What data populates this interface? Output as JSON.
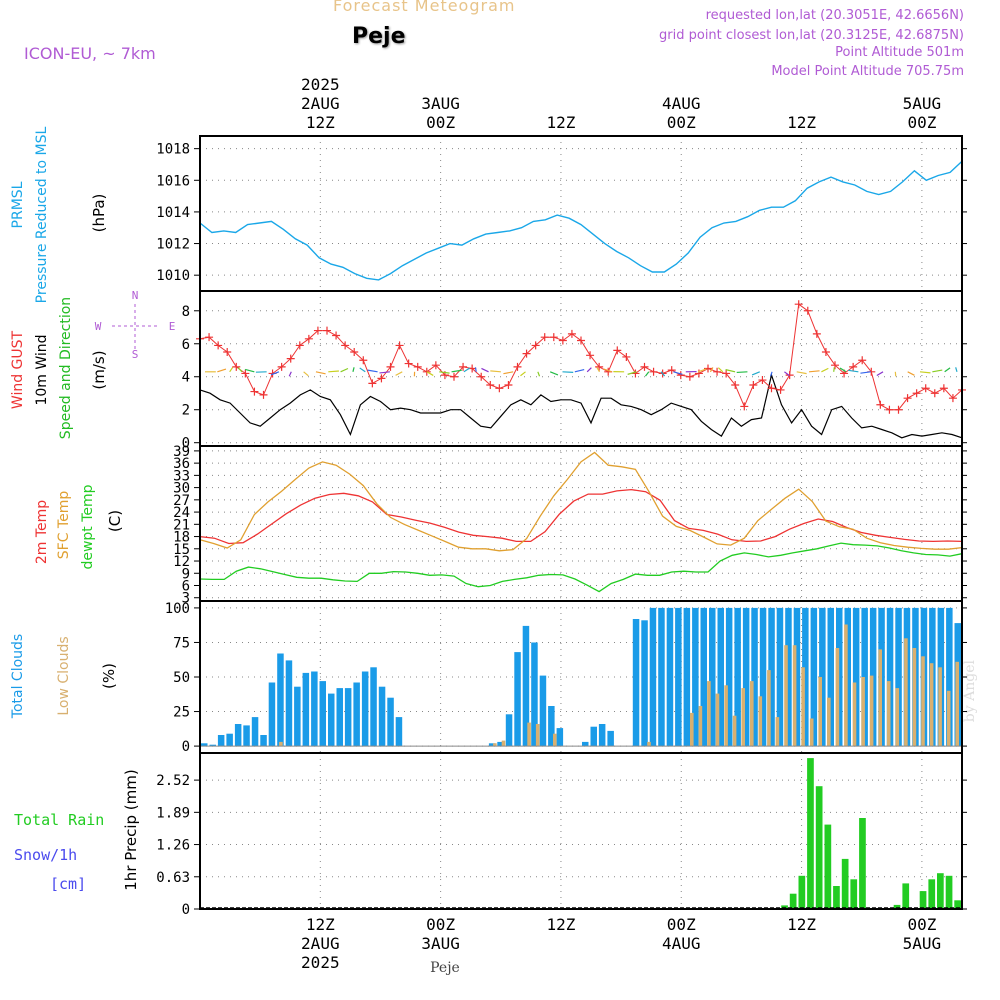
{
  "header": {
    "title": "Forecast Meteogram",
    "location": "Peje",
    "model": "ICON-EU, ~ 7km",
    "requested": "requested lon,lat (20.3051E, 42.6656N)",
    "grid_point": "grid point closest lon,lat (20.3125E, 42.6875N)",
    "point_altitude": "Point Altitude 501m",
    "model_altitude": "Model Point Altitude 705.75m",
    "footer_location": "Peje",
    "watermark": "by Angel"
  },
  "colors": {
    "pressure": "#1aa7e8",
    "gust": "#ee3333",
    "wind": "#000000",
    "direction": "#22bb22",
    "t2m": "#ee3333",
    "sfc": "#e0a030",
    "dew": "#22cc22",
    "total_clouds": "#1a9be8",
    "low_clouds": "#d8b070",
    "rain": "#22cc22",
    "snow": "#4a4aee",
    "purple": "#b05bd4"
  },
  "chart_data": [
    {
      "type": "line",
      "panel": "pressure",
      "ylabel": "(hPa)",
      "side_labels": [
        "PRMSL",
        "Pressure Reduced to MSL"
      ],
      "yticks": [
        1010,
        1012,
        1014,
        1016,
        1018
      ],
      "ylim": [
        1009.0,
        1018.8
      ],
      "x": [
        0,
        1,
        2,
        3,
        4,
        5,
        6,
        7,
        8,
        9,
        10,
        11,
        12,
        13,
        14,
        15,
        16,
        17,
        18,
        19,
        20,
        21,
        22,
        23,
        24,
        25,
        26,
        27,
        28,
        29,
        30,
        31,
        32,
        33,
        34,
        35,
        36,
        37,
        38,
        39,
        40,
        41,
        42,
        43,
        44,
        45,
        46,
        47,
        48,
        49,
        50,
        51,
        52,
        53,
        54,
        55,
        56,
        57,
        58,
        59,
        60,
        61,
        62,
        63,
        64
      ],
      "series": [
        {
          "values": [
            1013.3,
            1012.7,
            1012.8,
            1012.7,
            1013.2,
            1013.3,
            1013.4,
            1012.9,
            1012.3,
            1011.9,
            1011.1,
            1010.7,
            1010.5,
            1010.1,
            1009.8,
            1009.7,
            1010.1,
            1010.6,
            1011.0,
            1011.4,
            1011.7,
            1012.0,
            1011.9,
            1012.3,
            1012.6,
            1012.7,
            1012.8,
            1013.0,
            1013.4,
            1013.5,
            1013.8,
            1013.6,
            1013.2,
            1012.6,
            1012.0,
            1011.5,
            1011.1,
            1010.6,
            1010.2,
            1010.2,
            1010.7,
            1011.4,
            1012.4,
            1013.0,
            1013.3,
            1013.4,
            1013.7,
            1014.1,
            1014.3,
            1014.3,
            1014.7,
            1015.5,
            1015.9,
            1016.2,
            1015.9,
            1015.7,
            1015.3,
            1015.1,
            1015.3,
            1015.9,
            1016.6,
            1016.0,
            1016.3,
            1016.5,
            1017.2
          ]
        }
      ]
    },
    {
      "type": "line",
      "panel": "wind",
      "ylabel": "(m/s)",
      "side_labels": [
        "Wind GUST",
        "10m Wind",
        "Speed and Direction"
      ],
      "compass": [
        "N",
        "E",
        "S",
        "W"
      ],
      "yticks": [
        0,
        2,
        4,
        6,
        8
      ],
      "ylim": [
        -0.2,
        9.2
      ],
      "series": [
        {
          "name": "Wind GUST",
          "values": [
            6.3,
            6.4,
            5.9,
            5.5,
            4.6,
            4.2,
            3.1,
            2.9,
            4.2,
            4.6,
            5.1,
            5.9,
            6.3,
            6.8,
            6.8,
            6.5,
            5.9,
            5.5,
            5.0,
            3.6,
            3.9,
            4.6,
            5.9,
            4.8,
            4.6,
            4.3,
            4.7,
            4.1,
            4.0,
            4.6,
            4.5,
            4.0,
            3.5,
            3.3,
            3.5,
            4.6,
            5.4,
            5.9,
            6.4,
            6.4,
            6.2,
            6.6,
            6.2,
            5.3,
            4.6,
            4.3,
            5.6,
            5.2,
            4.2,
            4.6,
            4.3,
            4.2,
            4.4,
            4.1,
            4.0,
            4.2,
            4.5,
            4.3,
            4.2,
            3.5,
            2.2,
            3.5,
            3.8,
            3.3,
            3.2,
            4.1,
            8.4,
            8.0,
            6.6,
            5.5,
            4.7,
            4.2,
            4.6,
            5.0,
            4.3,
            2.3,
            2.0,
            2.0,
            2.7,
            3.0,
            3.3,
            3.0,
            3.3,
            2.7,
            3.2
          ]
        },
        {
          "name": "10m Wind",
          "values": [
            3.2,
            3.0,
            2.6,
            2.4,
            1.8,
            1.2,
            1.0,
            1.5,
            2.0,
            2.4,
            2.9,
            3.2,
            2.8,
            2.6,
            1.7,
            0.5,
            2.3,
            2.8,
            2.5,
            2.0,
            2.1,
            2.0,
            1.8,
            1.8,
            1.8,
            2.0,
            2.0,
            1.5,
            1.0,
            0.9,
            1.6,
            2.3,
            2.6,
            2.3,
            2.9,
            2.5,
            2.6,
            2.6,
            2.4,
            1.2,
            2.7,
            2.7,
            2.3,
            2.2,
            2.0,
            1.7,
            2.0,
            2.4,
            2.2,
            2.0,
            1.3,
            0.8,
            0.4,
            1.5,
            1.0,
            1.4,
            1.5,
            4.1,
            2.3,
            1.2,
            2.0,
            1.0,
            0.5,
            2.0,
            2.2,
            1.5,
            0.9,
            1.0,
            0.8,
            0.6,
            0.3,
            0.5,
            0.4,
            0.5,
            0.6,
            0.5,
            0.3
          ]
        }
      ]
    },
    {
      "type": "line",
      "panel": "temperature",
      "ylabel": "(C)",
      "side_labels": [
        "2m Temp",
        "SFC Temp",
        "dewpt Temp"
      ],
      "yticks": [
        3,
        6,
        9,
        12,
        15,
        18,
        21,
        24,
        27,
        30,
        33,
        36,
        39
      ],
      "ylim": [
        2.2,
        40.2
      ],
      "series": [
        {
          "name": "2m Temp",
          "values": [
            18.0,
            17.6,
            16.3,
            16.5,
            18.6,
            21.1,
            23.6,
            25.7,
            27.4,
            28.3,
            28.6,
            28.0,
            26.5,
            23.4,
            22.8,
            22.0,
            21.3,
            20.3,
            19.1,
            18.3,
            18.0,
            17.6,
            16.8,
            16.8,
            19.2,
            23.5,
            26.7,
            28.4,
            28.4,
            29.2,
            29.5,
            29.0,
            26.9,
            21.9,
            20.0,
            19.5,
            18.6,
            17.2,
            16.8,
            16.9,
            18.0,
            19.8,
            21.2,
            22.3,
            21.7,
            20.2,
            19.0,
            18.3,
            17.8,
            17.3,
            16.9,
            16.8,
            16.9,
            16.8
          ]
        },
        {
          "name": "SFC Temp",
          "values": [
            17.2,
            16.3,
            15.2,
            17.2,
            23.4,
            26.5,
            29.1,
            32.0,
            34.8,
            36.3,
            35.5,
            33.3,
            30.5,
            26.0,
            22.7,
            21.0,
            19.6,
            18.2,
            16.8,
            15.4,
            15.0,
            15.0,
            14.5,
            14.8,
            17.5,
            23.0,
            28.0,
            32.0,
            36.3,
            38.6,
            35.5,
            35.1,
            34.5,
            29.0,
            23.0,
            20.5,
            19.5,
            17.9,
            16.2,
            15.9,
            17.6,
            21.9,
            24.7,
            27.4,
            29.6,
            26.6,
            21.8,
            20.4,
            19.8,
            17.6,
            16.5,
            15.8,
            15.4,
            15.1,
            14.9,
            14.9,
            15.3
          ]
        },
        {
          "name": "dewpt Temp",
          "values": [
            7.6,
            7.5,
            7.5,
            9.5,
            10.5,
            10.1,
            9.4,
            8.7,
            8.0,
            7.8,
            7.8,
            7.4,
            7.1,
            7.0,
            9.0,
            9.0,
            9.4,
            9.3,
            9.0,
            8.5,
            8.6,
            8.3,
            6.5,
            5.7,
            6.0,
            7.0,
            7.5,
            7.9,
            8.5,
            8.7,
            8.6,
            7.6,
            6.1,
            4.5,
            6.5,
            7.5,
            8.8,
            8.5,
            8.5,
            9.3,
            9.5,
            9.3,
            9.3,
            12.0,
            13.4,
            14.0,
            13.6,
            13.0,
            13.4,
            14.0,
            14.5,
            15.0,
            15.7,
            16.4,
            16.0,
            15.9,
            15.7,
            15.2,
            14.5,
            14.0,
            13.6,
            13.5,
            13.2,
            13.8
          ]
        }
      ]
    },
    {
      "type": "bar",
      "panel": "clouds",
      "ylabel": "(%)",
      "side_labels": [
        "Total Clouds",
        "Low Clouds"
      ],
      "yticks": [
        0,
        25,
        50,
        75,
        100
      ],
      "ylim": [
        -5,
        105
      ],
      "series": [
        {
          "name": "Total Clouds",
          "values": [
            2,
            1,
            8,
            9,
            16,
            15,
            21,
            8,
            46,
            67,
            62,
            43,
            53,
            54,
            47,
            38,
            42,
            42,
            46,
            54,
            57,
            43,
            35,
            21,
            0,
            0,
            0,
            0,
            0,
            0,
            0,
            0,
            0,
            0,
            2,
            3,
            23,
            68,
            87,
            75,
            51,
            29,
            13,
            0,
            0,
            3,
            14,
            16,
            11,
            0,
            0,
            92,
            91,
            100,
            100,
            100,
            100,
            100,
            100,
            100,
            100,
            100,
            100,
            100,
            100,
            100,
            100,
            100,
            100,
            100,
            100,
            100,
            100,
            100,
            100,
            100,
            100,
            100,
            100,
            100,
            100,
            100,
            100,
            100,
            100,
            100,
            100,
            100,
            100,
            89
          ]
        },
        {
          "name": "Low Clouds",
          "values": [
            0,
            0,
            0,
            0,
            0,
            0,
            0,
            0,
            0,
            3,
            0,
            0,
            0,
            0,
            0,
            0,
            0,
            0,
            0,
            0,
            0,
            0,
            0,
            0,
            0,
            0,
            0,
            0,
            0,
            0,
            0,
            0,
            0,
            0,
            2,
            4,
            0,
            0,
            17,
            16,
            0,
            9,
            0,
            0,
            0,
            0,
            0,
            0,
            0,
            0,
            0,
            0,
            3,
            0,
            0,
            0,
            0,
            24,
            29,
            47,
            38,
            44,
            22,
            42,
            47,
            36,
            55,
            21,
            73,
            73,
            57,
            20,
            50,
            35,
            71,
            88,
            46,
            50,
            51,
            70,
            47,
            42,
            78,
            71,
            65,
            60,
            57,
            40,
            61
          ]
        }
      ]
    },
    {
      "type": "bar",
      "panel": "precip",
      "ylabel": "1hr Precip (mm)",
      "side_labels": [
        "Total  Rain",
        "Snow/1h",
        "[cm]"
      ],
      "yticks": [
        0,
        0.63,
        1.26,
        1.89,
        2.52
      ],
      "ylim": [
        0,
        3.05
      ],
      "series": [
        {
          "name": "Total Rain",
          "values": [
            0,
            0,
            0,
            0,
            0,
            0,
            0,
            0,
            0,
            0,
            0,
            0,
            0,
            0,
            0,
            0,
            0,
            0,
            0,
            0,
            0,
            0,
            0,
            0,
            0,
            0,
            0,
            0,
            0,
            0,
            0,
            0,
            0,
            0,
            0,
            0,
            0,
            0,
            0,
            0,
            0,
            0,
            0,
            0,
            0,
            0,
            0,
            0,
            0,
            0,
            0,
            0,
            0,
            0,
            0,
            0,
            0,
            0,
            0,
            0,
            0,
            0,
            0,
            0,
            0,
            0,
            0,
            0.07,
            0.3,
            0.65,
            2.95,
            2.4,
            1.65,
            0.45,
            0.98,
            0.58,
            1.78,
            0,
            0,
            0,
            0.08,
            0.5,
            0,
            0.35,
            0.58,
            0.7,
            0.65,
            0.17
          ]
        }
      ]
    }
  ],
  "time_axis": {
    "top": [
      {
        "h": 19,
        "lines": [
          "2025",
          "2AUG",
          "12Z"
        ]
      },
      {
        "h": 31,
        "lines": [
          "3AUG",
          "00Z"
        ]
      },
      {
        "h": 43,
        "lines": [
          "12Z"
        ]
      },
      {
        "h": 55,
        "lines": [
          "4AUG",
          "00Z"
        ]
      },
      {
        "h": 67,
        "lines": [
          "12Z"
        ]
      },
      {
        "h": 79,
        "lines": [
          "5AUG",
          "00Z"
        ]
      }
    ],
    "bottom": [
      {
        "h": 19,
        "lines": [
          "12Z",
          "2AUG",
          "2025"
        ]
      },
      {
        "h": 31,
        "lines": [
          "00Z",
          "3AUG"
        ]
      },
      {
        "h": 43,
        "lines": [
          "12Z"
        ]
      },
      {
        "h": 55,
        "lines": [
          "00Z",
          "4AUG"
        ]
      },
      {
        "h": 67,
        "lines": [
          "12Z"
        ]
      },
      {
        "h": 79,
        "lines": [
          "00Z",
          "5AUG"
        ]
      }
    ]
  }
}
